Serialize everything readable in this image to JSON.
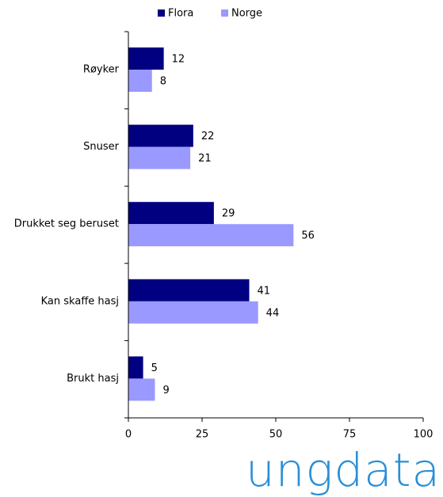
{
  "chart_data": {
    "type": "hbar",
    "categories": [
      "Røyker",
      "Snuser",
      "Drukket seg beruset",
      "Kan skaffe hasj",
      "Brukt hasj"
    ],
    "series": [
      {
        "name": "Flora",
        "color": "#000080",
        "values": [
          12,
          22,
          29,
          41,
          5
        ]
      },
      {
        "name": "Norge",
        "color": "#9999ff",
        "values": [
          8,
          21,
          56,
          44,
          9
        ]
      }
    ],
    "xlim": [
      0,
      100
    ],
    "xticks": [
      0,
      25,
      50,
      75,
      100
    ],
    "legend": "top"
  },
  "logo": "ungdata"
}
